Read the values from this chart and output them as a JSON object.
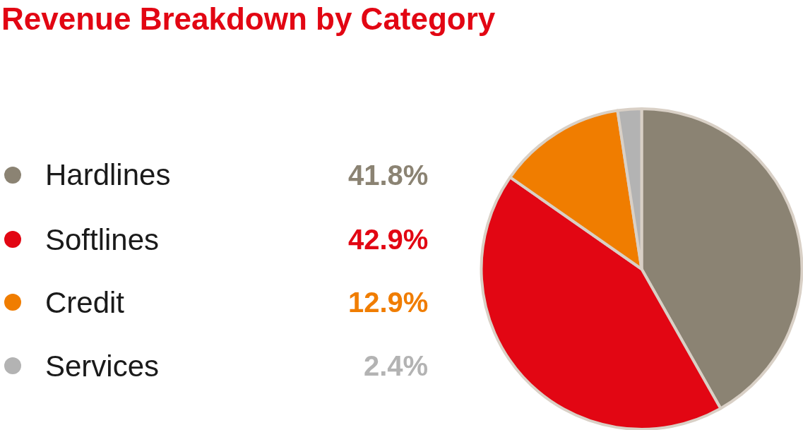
{
  "chart_data": {
    "type": "pie",
    "title": "Revenue Breakdown by Category",
    "categories": [
      "Hardlines",
      "Softlines",
      "Credit",
      "Services"
    ],
    "values": [
      41.8,
      42.9,
      12.9,
      2.4
    ],
    "colors": [
      "#8b8373",
      "#e20613",
      "#f07d00",
      "#b3b3b3"
    ],
    "value_labels": [
      "41.8%",
      "42.9%",
      "12.9%",
      "2.4%"
    ],
    "legend": "left"
  }
}
